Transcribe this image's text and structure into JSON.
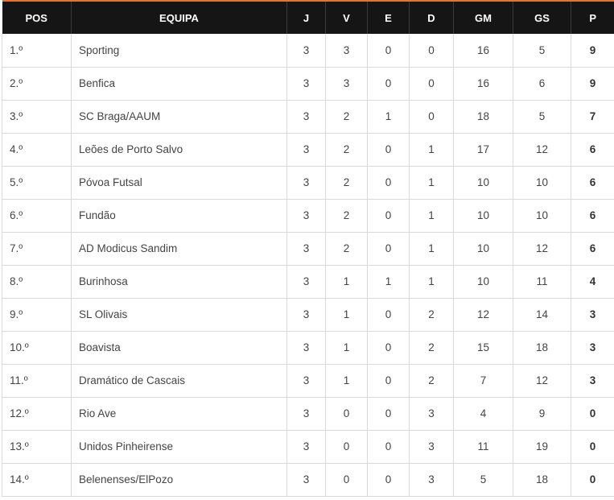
{
  "columns": {
    "pos": "POS",
    "team": "EQUIPA",
    "played": "J",
    "wins": "V",
    "draws": "E",
    "losses": "D",
    "goals_for": "GM",
    "goals_against": "GS",
    "points": "P"
  },
  "rows": [
    {
      "pos": "1.º",
      "team": "Sporting",
      "played": "3",
      "wins": "3",
      "draws": "0",
      "losses": "0",
      "goals_for": "16",
      "goals_against": "5",
      "points": "9"
    },
    {
      "pos": "2.º",
      "team": "Benfica",
      "played": "3",
      "wins": "3",
      "draws": "0",
      "losses": "0",
      "goals_for": "16",
      "goals_against": "6",
      "points": "9"
    },
    {
      "pos": "3.º",
      "team": "SC Braga/AAUM",
      "played": "3",
      "wins": "2",
      "draws": "1",
      "losses": "0",
      "goals_for": "18",
      "goals_against": "5",
      "points": "7"
    },
    {
      "pos": "4.º",
      "team": "Leões de Porto Salvo",
      "played": "3",
      "wins": "2",
      "draws": "0",
      "losses": "1",
      "goals_for": "17",
      "goals_against": "12",
      "points": "6"
    },
    {
      "pos": "5.º",
      "team": "Póvoa Futsal",
      "played": "3",
      "wins": "2",
      "draws": "0",
      "losses": "1",
      "goals_for": "10",
      "goals_against": "10",
      "points": "6"
    },
    {
      "pos": "6.º",
      "team": "Fundão",
      "played": "3",
      "wins": "2",
      "draws": "0",
      "losses": "1",
      "goals_for": "10",
      "goals_against": "10",
      "points": "6"
    },
    {
      "pos": "7.º",
      "team": "AD Modicus Sandim",
      "played": "3",
      "wins": "2",
      "draws": "0",
      "losses": "1",
      "goals_for": "10",
      "goals_against": "12",
      "points": "6"
    },
    {
      "pos": "8.º",
      "team": "Burinhosa",
      "played": "3",
      "wins": "1",
      "draws": "1",
      "losses": "1",
      "goals_for": "10",
      "goals_against": "11",
      "points": "4"
    },
    {
      "pos": "9.º",
      "team": "SL Olivais",
      "played": "3",
      "wins": "1",
      "draws": "0",
      "losses": "2",
      "goals_for": "12",
      "goals_against": "14",
      "points": "3"
    },
    {
      "pos": "10.º",
      "team": "Boavista",
      "played": "3",
      "wins": "1",
      "draws": "0",
      "losses": "2",
      "goals_for": "15",
      "goals_against": "18",
      "points": "3"
    },
    {
      "pos": "11.º",
      "team": "Dramático de Cascais",
      "played": "3",
      "wins": "1",
      "draws": "0",
      "losses": "2",
      "goals_for": "7",
      "goals_against": "12",
      "points": "3"
    },
    {
      "pos": "12.º",
      "team": "Rio Ave",
      "played": "3",
      "wins": "0",
      "draws": "0",
      "losses": "3",
      "goals_for": "4",
      "goals_against": "9",
      "points": "0"
    },
    {
      "pos": "13.º",
      "team": "Unidos Pinheirense",
      "played": "3",
      "wins": "0",
      "draws": "0",
      "losses": "3",
      "goals_for": "11",
      "goals_against": "19",
      "points": "0"
    },
    {
      "pos": "14.º",
      "team": "Belenenses/ElPozo",
      "played": "3",
      "wins": "0",
      "draws": "0",
      "losses": "3",
      "goals_for": "5",
      "goals_against": "18",
      "points": "0"
    }
  ],
  "colors": {
    "header_background": "#151515",
    "header_text": "#ffffff",
    "accent": "#e8742a",
    "grid_line": "#d9d9d9",
    "cell_text": "#444444"
  }
}
